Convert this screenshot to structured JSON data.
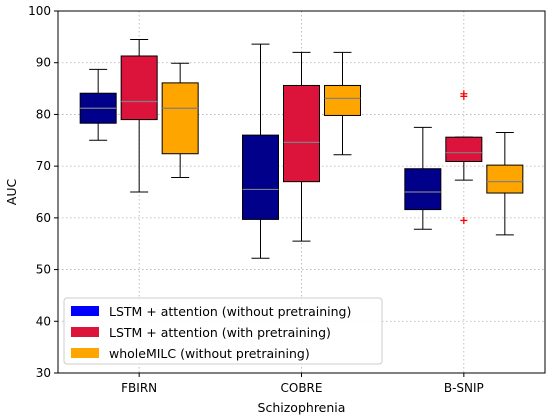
{
  "chart_data": {
    "type": "boxplot",
    "xlabel": "Schizophrenia",
    "ylabel": "AUC",
    "ylim": [
      30,
      100
    ],
    "yticks": [
      30,
      40,
      50,
      60,
      70,
      80,
      90,
      100
    ],
    "grid": true,
    "legend_position": "lower-left",
    "categories": [
      "FBIRN",
      "COBRE",
      "B-SNIP"
    ],
    "series": [
      {
        "name": "LSTM + attention (without pretraining)",
        "color": "#00008b",
        "legend_color": "#0000ff",
        "boxes": [
          {
            "whisker_low": 75.0,
            "q1": 78.3,
            "median": 81.2,
            "q3": 84.1,
            "whisker_high": 88.7,
            "outliers": []
          },
          {
            "whisker_low": 52.2,
            "q1": 59.7,
            "median": 65.5,
            "q3": 76.0,
            "whisker_high": 93.6,
            "outliers": []
          },
          {
            "whisker_low": 57.8,
            "q1": 61.6,
            "median": 65.0,
            "q3": 69.5,
            "whisker_high": 77.5,
            "outliers": []
          }
        ]
      },
      {
        "name": "LSTM + attention (with pretraining)",
        "color": "#dc143c",
        "legend_color": "#dc143c",
        "boxes": [
          {
            "whisker_low": 65.0,
            "q1": 79.0,
            "median": 82.5,
            "q3": 91.3,
            "whisker_high": 94.5,
            "outliers": []
          },
          {
            "whisker_low": 55.5,
            "q1": 67.0,
            "median": 74.6,
            "q3": 85.6,
            "whisker_high": 92.0,
            "outliers": []
          },
          {
            "whisker_low": 67.3,
            "q1": 70.9,
            "median": 72.6,
            "q3": 75.6,
            "whisker_high": 75.6,
            "outliers": [
              83.5,
              84.0,
              59.5
            ]
          }
        ]
      },
      {
        "name": "wholeMILC (without pretraining)",
        "color": "#ffa500",
        "legend_color": "#ffa500",
        "boxes": [
          {
            "whisker_low": 67.8,
            "q1": 72.4,
            "median": 81.2,
            "q3": 86.1,
            "whisker_high": 89.9,
            "outliers": []
          },
          {
            "whisker_low": 72.2,
            "q1": 79.8,
            "median": 83.1,
            "q3": 85.6,
            "whisker_high": 92.0,
            "outliers": []
          },
          {
            "whisker_low": 56.7,
            "q1": 64.8,
            "median": 67.0,
            "q3": 70.2,
            "whisker_high": 76.5,
            "outliers": []
          }
        ]
      }
    ]
  }
}
